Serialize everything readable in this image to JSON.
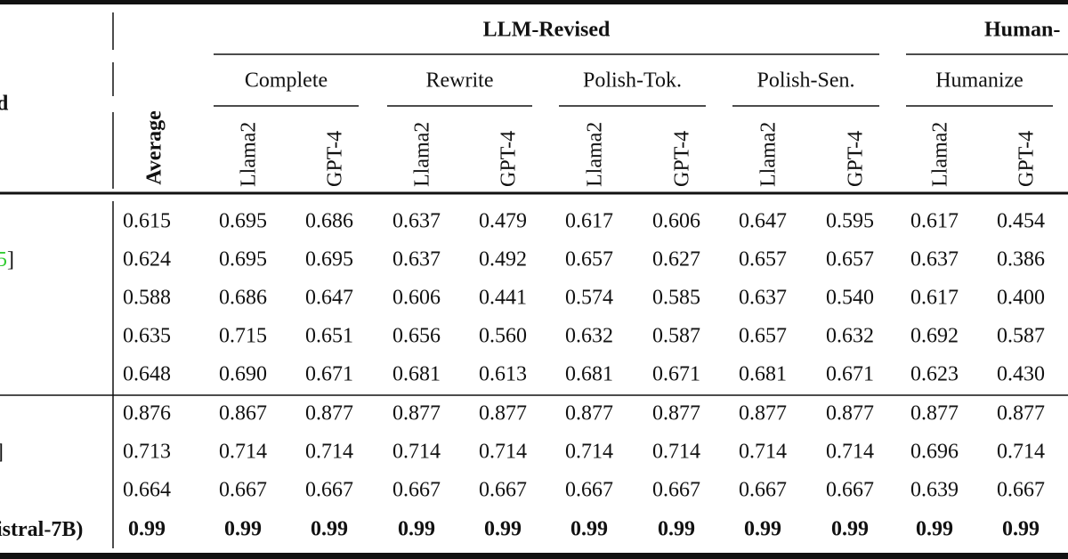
{
  "header": {
    "row_header": "d",
    "groups": [
      "LLM-Revised",
      "Human-"
    ],
    "average": "Average",
    "subgroups": [
      "Complete",
      "Rewrite",
      "Polish-Tok.",
      "Polish-Sen.",
      "Humanize"
    ],
    "models": [
      "Llama2",
      "GPT-4",
      "Llama2",
      "GPT-4",
      "Llama2",
      "GPT-4",
      "Llama2",
      "GPT-4",
      "Llama2",
      "GPT-4"
    ]
  },
  "table": {
    "rows": [
      {
        "values": [
          "0.615",
          "0.695",
          "0.686",
          "0.637",
          "0.479",
          "0.617",
          "0.606",
          "0.647",
          "0.595",
          "0.617",
          "0.454"
        ]
      },
      {
        "label_parts": [
          {
            "text": "5",
            "color": "#33cc33"
          },
          {
            "text": "]"
          }
        ],
        "values": [
          "0.624",
          "0.695",
          "0.695",
          "0.637",
          "0.492",
          "0.657",
          "0.627",
          "0.657",
          "0.657",
          "0.637",
          "0.386"
        ]
      },
      {
        "values": [
          "0.588",
          "0.686",
          "0.647",
          "0.606",
          "0.441",
          "0.574",
          "0.585",
          "0.637",
          "0.540",
          "0.617",
          "0.400"
        ]
      },
      {
        "values": [
          "0.635",
          "0.715",
          "0.651",
          "0.656",
          "0.560",
          "0.632",
          "0.587",
          "0.657",
          "0.632",
          "0.692",
          "0.587"
        ]
      },
      {
        "values": [
          "0.648",
          "0.690",
          "0.671",
          "0.681",
          "0.613",
          "0.681",
          "0.671",
          "0.681",
          "0.671",
          "0.623",
          "0.430"
        ]
      },
      {
        "values": [
          "0.876",
          "0.867",
          "0.877",
          "0.877",
          "0.877",
          "0.877",
          "0.877",
          "0.877",
          "0.877",
          "0.877",
          "0.877"
        ]
      },
      {
        "label_parts": [
          {
            "text": "]"
          }
        ],
        "values": [
          "0.713",
          "0.714",
          "0.714",
          "0.714",
          "0.714",
          "0.714",
          "0.714",
          "0.714",
          "0.714",
          "0.696",
          "0.714"
        ]
      },
      {
        "values": [
          "0.664",
          "0.667",
          "0.667",
          "0.667",
          "0.667",
          "0.667",
          "0.667",
          "0.667",
          "0.667",
          "0.639",
          "0.667"
        ]
      },
      {
        "label_parts": [
          {
            "text": "istral-7B)"
          }
        ],
        "bold": true,
        "values": [
          "0.99",
          "0.99",
          "0.99",
          "0.99",
          "0.99",
          "0.99",
          "0.99",
          "0.99",
          "0.99",
          "0.99",
          "0.99"
        ]
      }
    ]
  }
}
